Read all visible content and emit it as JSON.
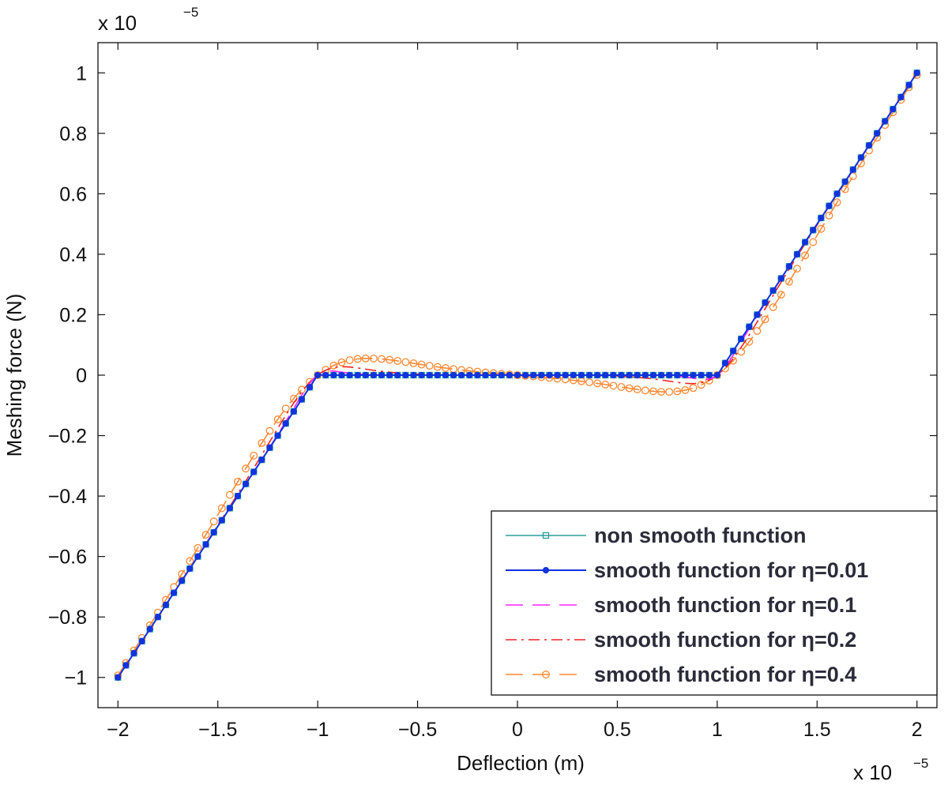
{
  "chart_data": {
    "type": "line",
    "title": "",
    "xlabel": "Deflection (m)",
    "ylabel": "Meshing force (N)",
    "x_multiplier": "x 10",
    "x_exponent": "−5",
    "y_multiplier": "x 10",
    "y_exponent": "−5",
    "xlim": [
      -2.1,
      2.1
    ],
    "ylim": [
      -1.1,
      1.1
    ],
    "xticks": [
      -2,
      -1.5,
      -1,
      -0.5,
      0,
      0.5,
      1,
      1.5,
      2
    ],
    "xtick_labels": [
      "−2",
      "−1.5",
      "−1",
      "−0.5",
      "0",
      "0.5",
      "1",
      "1.5",
      "2"
    ],
    "yticks": [
      -1,
      -0.8,
      -0.6,
      -0.4,
      -0.2,
      0,
      0.2,
      0.4,
      0.6,
      0.8,
      1
    ],
    "ytick_labels": [
      "−1",
      "−0.8",
      "−0.6",
      "−0.4",
      "−0.2",
      "0",
      "0.2",
      "0.4",
      "0.6",
      "0.8",
      "1"
    ],
    "grid": false,
    "legend_position": "bottom-right",
    "backlash": 1,
    "x_range": [
      -2,
      2
    ],
    "n_points": 101,
    "series": [
      {
        "name": "non smooth function",
        "eta": 0,
        "color": "#2a9d9d",
        "dash": "",
        "marker": "square"
      },
      {
        "name": "smooth function for η=0.01",
        "eta": 0.01,
        "color": "#1133dd",
        "dash": "",
        "marker": "star"
      },
      {
        "name": "smooth function for η=0.1",
        "eta": 0.1,
        "color": "#ff22ff",
        "dash": "22,12",
        "marker": "none"
      },
      {
        "name": "smooth function for η=0.2",
        "eta": 0.2,
        "color": "#ee2222",
        "dash": "14,6,3,6",
        "marker": "none"
      },
      {
        "name": "smooth function for η=0.4",
        "eta": 0.4,
        "color": "#ff8833",
        "dash": "22,12",
        "marker": "circle"
      }
    ]
  }
}
